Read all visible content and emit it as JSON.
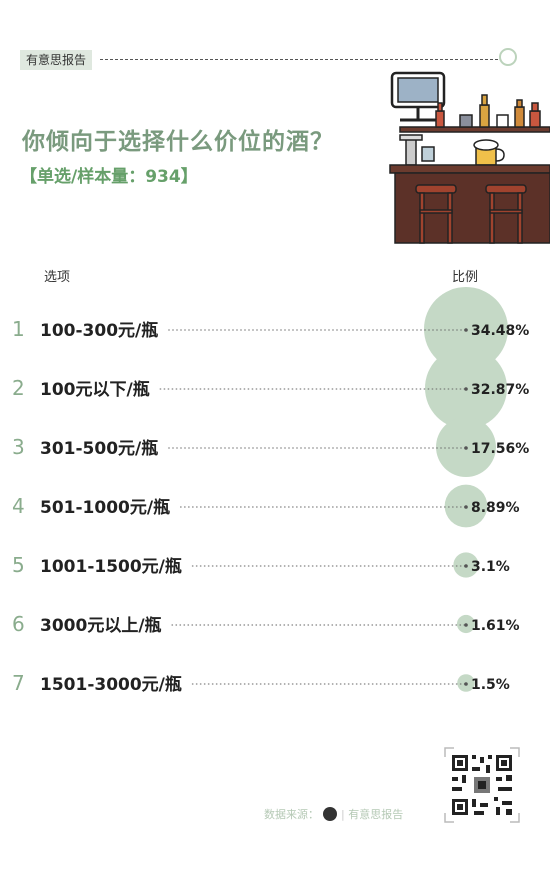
{
  "brand_tag": "有意思报告",
  "title": "你倾向于选择什么价位的酒？",
  "subtitle": "【单选/样本量：934】",
  "column_headers": {
    "option": "选项",
    "ratio": "比例"
  },
  "chart_data": {
    "type": "table",
    "categories": [
      "100-300元/瓶",
      "100元以下/瓶",
      "301-500元/瓶",
      "501-1000元/瓶",
      "1001-1500元/瓶",
      "3000元以上/瓶",
      "1501-3000元/瓶"
    ],
    "ranks": [
      "1",
      "2",
      "3",
      "4",
      "5",
      "6",
      "7"
    ],
    "values": [
      34.48,
      32.87,
      17.56,
      8.89,
      3.1,
      1.61,
      1.5
    ],
    "value_labels": [
      "34.48%",
      "32.87%",
      "17.56%",
      "8.89%",
      "3.1%",
      "1.61%",
      "1.5%"
    ],
    "unit": "%",
    "bubble_color": "#c5d9c6"
  },
  "footer": {
    "source_label": "数据来源：",
    "source_name": "有意思报告"
  },
  "colors": {
    "title": "#7a9a7e",
    "subtitle": "#66a06a",
    "accent": "#dfe8df"
  }
}
